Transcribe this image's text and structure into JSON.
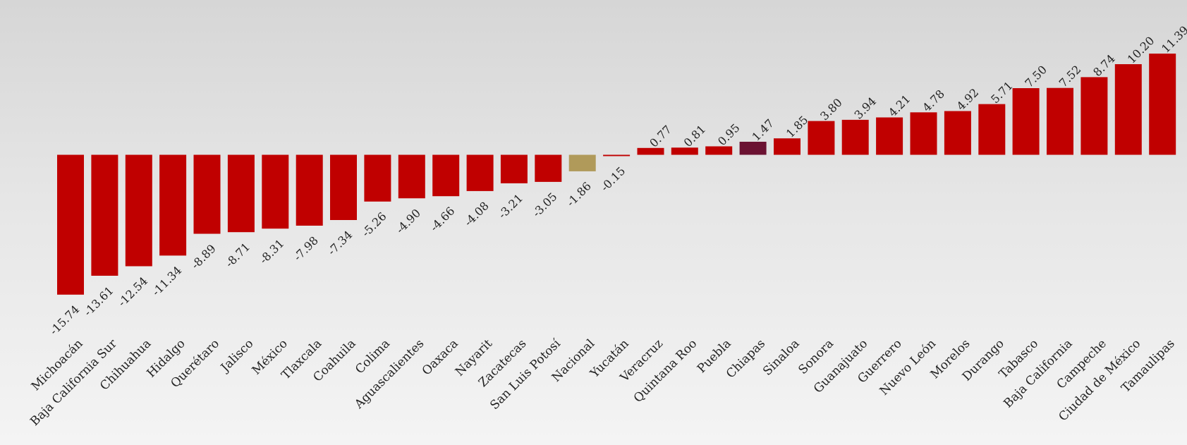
{
  "chart_data": {
    "type": "bar",
    "title": "",
    "xlabel": "",
    "ylabel": "",
    "ylim": [
      -15.74,
      11.39
    ],
    "grid": false,
    "legend": "none",
    "colors": {
      "default": "#c00000",
      "Nacional": "#b09a5a",
      "Chiapas": "#6b1232"
    },
    "categories": [
      "Michoacán",
      "Baja California Sur",
      "Chihuahua",
      "Hidalgo",
      "Querétaro",
      "Jalisco",
      "México",
      "Tlaxcala",
      "Coahuila",
      "Colima",
      "Aguascalientes",
      "Oaxaca",
      "Nayarit",
      "Zacatecas",
      "San Luis Potosí",
      "Nacional",
      "Yucatán",
      "Veracruz",
      "Quintana Roo",
      "Puebla",
      "Chiapas",
      "Sinaloa",
      "Sonora",
      "Guanajuato",
      "Guerrero",
      "Nuevo León",
      "Morelos",
      "Durango",
      "Tabasco",
      "Baja California",
      "Campeche",
      "Ciudad de México",
      "Tamaulipas"
    ],
    "values": [
      -15.74,
      -13.61,
      -12.54,
      -11.34,
      -8.89,
      -8.71,
      -8.31,
      -7.98,
      -7.34,
      -5.26,
      -4.9,
      -4.66,
      -4.08,
      -3.21,
      -3.05,
      -1.86,
      -0.15,
      0.77,
      0.81,
      0.95,
      1.47,
      1.85,
      3.8,
      3.94,
      4.21,
      4.78,
      4.92,
      5.71,
      7.5,
      7.52,
      8.74,
      10.2,
      11.39
    ],
    "value_labels": [
      "-15.74",
      "-13.61",
      "-12.54",
      "-11.34",
      "-8.89",
      "-8.71",
      "-8.31",
      "-7.98",
      "-7.34",
      "-5.26",
      "-4.90",
      "-4.66",
      "-4.08",
      "-3.21",
      "-3.05",
      "-1.86",
      "-0.15",
      "0.77",
      "0.81",
      "0.95",
      "1.47",
      "1.85",
      "3.80",
      "3.94",
      "4.21",
      "4.78",
      "4.92",
      "5.71",
      "7.50",
      "7.52",
      "8.74",
      "10.20",
      "11.39"
    ]
  }
}
